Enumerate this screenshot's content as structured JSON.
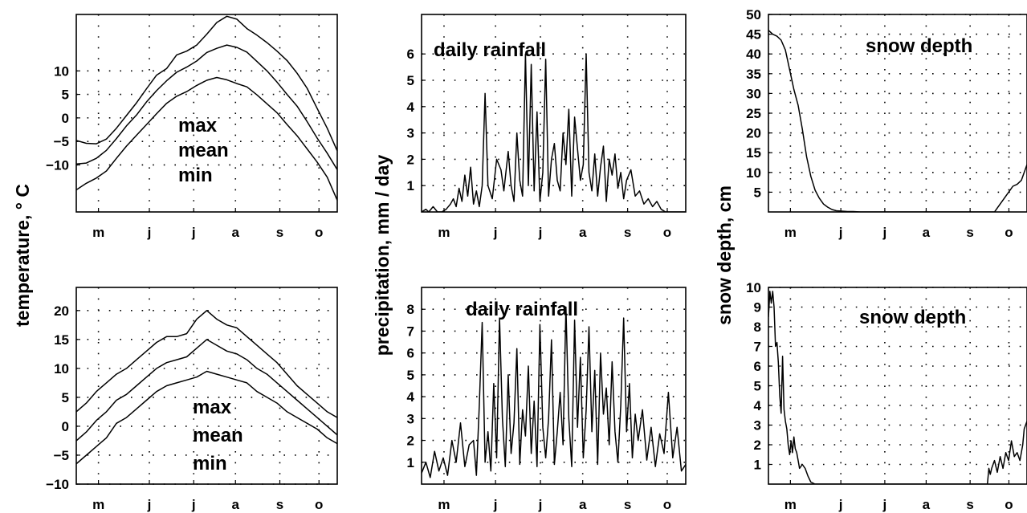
{
  "figure": {
    "ylabels": {
      "temperature": "temperature,   ° C",
      "precipitation": "precipitation, mm / day",
      "snow": "snow depth, cm"
    }
  },
  "chart_data": [
    {
      "id": "temp-top",
      "type": "line",
      "grid": true,
      "xticks": [
        "m",
        "j",
        "j",
        "a",
        "s",
        "o"
      ],
      "xlim": [
        0,
        183
      ],
      "ylim": [
        -20,
        22
      ],
      "yticks": [
        10,
        5,
        0,
        -5,
        -10
      ],
      "ytick_labels": [
        "10",
        "5",
        "0",
        "−5",
        "−10"
      ],
      "annotations": [
        "max",
        "mean",
        "min"
      ],
      "series": [
        {
          "values": [
            -4.8,
            -5.4,
            -5.5,
            -4.5,
            -2.2,
            0.5,
            3.2,
            6.2,
            9.1,
            10.5,
            13.4,
            14.2,
            15.5,
            17.8,
            20.3,
            21.6,
            21.0,
            19.0,
            17.6,
            16.0,
            14.2,
            12.2,
            9.5,
            6.3,
            2.0,
            -2.2,
            -7.0
          ]
        },
        {
          "values": [
            -9.8,
            -9.6,
            -8.6,
            -6.9,
            -4.4,
            -1.7,
            0.6,
            3.4,
            5.8,
            7.9,
            9.7,
            10.8,
            12.1,
            13.9,
            14.8,
            15.5,
            15.0,
            14.0,
            12.0,
            10.0,
            7.6,
            5.0,
            2.5,
            -0.8,
            -4.3,
            -7.5,
            -11.0
          ]
        },
        {
          "values": [
            -15.3,
            -13.9,
            -12.8,
            -11.3,
            -8.6,
            -6.0,
            -3.7,
            -1.4,
            0.9,
            3.1,
            4.6,
            5.6,
            6.9,
            8.0,
            8.6,
            8.1,
            7.3,
            6.6,
            4.9,
            3.0,
            1.1,
            -1.4,
            -3.8,
            -6.6,
            -9.4,
            -12.6,
            -17.5
          ]
        }
      ]
    },
    {
      "id": "rain-top",
      "type": "line",
      "grid": true,
      "title": "daily rainfall",
      "xticks": [
        "m",
        "j",
        "j",
        "a",
        "s",
        "o"
      ],
      "xlim": [
        0,
        183
      ],
      "ylim": [
        0,
        7.5
      ],
      "yticks": [
        1,
        2,
        3,
        4,
        5,
        6
      ],
      "x": [
        0,
        3,
        5,
        8,
        11,
        14,
        17,
        20,
        22,
        24,
        26,
        28,
        30,
        32,
        34,
        36,
        38,
        40,
        42,
        44,
        46,
        49,
        52,
        55,
        57,
        60,
        62,
        64,
        66,
        68,
        70,
        72,
        74,
        76,
        78,
        80,
        82,
        84,
        86,
        88,
        90,
        92,
        94,
        96,
        98,
        100,
        102,
        104,
        106,
        108,
        110,
        112,
        114,
        116,
        118,
        120,
        122,
        124,
        126,
        128,
        130,
        132,
        134,
        136,
        138,
        140,
        142,
        145,
        148,
        151,
        154,
        157,
        160,
        163,
        166,
        169,
        172,
        175,
        178,
        183
      ],
      "values": [
        0,
        0.1,
        0,
        0.2,
        0,
        0,
        0.1,
        0.3,
        0.5,
        0.2,
        0.9,
        0.4,
        1.4,
        0.6,
        1.7,
        0.3,
        0.8,
        0.2,
        1.0,
        4.5,
        1.0,
        0.5,
        2.0,
        1.6,
        0.8,
        2.3,
        1.0,
        0.4,
        3.0,
        1.2,
        0.6,
        6.0,
        1.0,
        5.6,
        0.8,
        3.8,
        0.4,
        1.5,
        5.8,
        0.6,
        2.0,
        2.6,
        1.2,
        0.8,
        3.0,
        1.8,
        3.9,
        0.6,
        3.6,
        2.4,
        1.2,
        1.8,
        6.0,
        1.5,
        0.8,
        2.2,
        0.6,
        1.7,
        2.5,
        0.4,
        2.0,
        1.4,
        2.2,
        0.9,
        1.5,
        0.5,
        1.2,
        1.6,
        0.6,
        0.8,
        0.3,
        0.5,
        0.2,
        0.4,
        0.1,
        0,
        0,
        0,
        0,
        0
      ]
    },
    {
      "id": "snow-top",
      "type": "line",
      "grid": true,
      "title": "snow depth",
      "xticks": [
        "m",
        "j",
        "j",
        "a",
        "s",
        "o"
      ],
      "xlim": [
        0,
        183
      ],
      "ylim": [
        0,
        50
      ],
      "yticks": [
        5,
        10,
        15,
        20,
        25,
        30,
        35,
        40,
        45,
        50
      ],
      "x": [
        0,
        3,
        6,
        9,
        12,
        15,
        18,
        21,
        24,
        27,
        30,
        33,
        36,
        39,
        42,
        45,
        48,
        52,
        56,
        60,
        65,
        70,
        80,
        100,
        130,
        160,
        170,
        173,
        176,
        179,
        183
      ],
      "values": [
        46,
        45,
        44.5,
        43.5,
        41,
        36,
        31,
        27,
        21,
        14,
        9,
        5.5,
        3.5,
        2,
        1.2,
        0.6,
        0.3,
        0.2,
        0.1,
        0.1,
        0,
        0,
        0,
        0,
        0,
        0,
        5,
        6.5,
        7,
        8,
        12
      ]
    },
    {
      "id": "temp-bottom",
      "type": "line",
      "grid": true,
      "xticks": [
        "m",
        "j",
        "j",
        "a",
        "s",
        "o"
      ],
      "xlim": [
        0,
        183
      ],
      "ylim": [
        -10,
        24
      ],
      "yticks": [
        20,
        15,
        10,
        5,
        0,
        -5,
        -10
      ],
      "ytick_labels": [
        "20",
        "15",
        "10",
        "5",
        "0",
        "−5",
        "−10"
      ],
      "annotations": [
        "max",
        "mean",
        "min"
      ],
      "series": [
        {
          "values": [
            2.5,
            4.0,
            6.0,
            7.5,
            9.0,
            10.0,
            11.5,
            13.0,
            14.5,
            15.5,
            15.5,
            16.0,
            18.5,
            20.0,
            18.5,
            17.5,
            17.0,
            15.5,
            14.0,
            12.5,
            11.0,
            9.0,
            7.0,
            5.5,
            4.0,
            2.5,
            1.5
          ]
        },
        {
          "values": [
            -2.5,
            -1.0,
            1.0,
            2.5,
            4.5,
            5.5,
            7.0,
            8.5,
            10.0,
            11.0,
            11.5,
            12.0,
            13.5,
            15.0,
            14.0,
            13.0,
            12.5,
            11.5,
            10.0,
            9.0,
            7.5,
            6.0,
            4.5,
            3.0,
            1.5,
            0.0,
            -1.5
          ]
        },
        {
          "values": [
            -6.5,
            -5.0,
            -3.5,
            -2.0,
            0.5,
            1.5,
            3.0,
            4.5,
            6.0,
            7.0,
            7.5,
            8.0,
            8.5,
            9.5,
            9.0,
            8.5,
            8.0,
            7.5,
            6.0,
            5.0,
            4.0,
            2.5,
            1.5,
            0.5,
            -0.5,
            -2.0,
            -3.0
          ]
        }
      ]
    },
    {
      "id": "rain-bottom",
      "type": "line",
      "grid": true,
      "title": "daily rainfall",
      "xticks": [
        "m",
        "j",
        "j",
        "a",
        "s",
        "o"
      ],
      "xlim": [
        0,
        183
      ],
      "ylim": [
        0,
        9
      ],
      "yticks": [
        1,
        2,
        3,
        4,
        5,
        6,
        7,
        8
      ],
      "x": [
        0,
        3,
        6,
        9,
        12,
        15,
        18,
        21,
        24,
        27,
        30,
        33,
        36,
        38,
        40,
        42,
        44,
        46,
        48,
        50,
        52,
        54,
        56,
        58,
        60,
        62,
        64,
        66,
        68,
        70,
        72,
        74,
        76,
        78,
        80,
        82,
        84,
        86,
        88,
        90,
        92,
        94,
        96,
        98,
        100,
        102,
        104,
        106,
        108,
        110,
        112,
        114,
        116,
        118,
        120,
        122,
        124,
        126,
        128,
        130,
        132,
        134,
        136,
        138,
        140,
        142,
        144,
        146,
        148,
        150,
        153,
        156,
        159,
        162,
        165,
        168,
        171,
        174,
        177,
        180,
        183
      ],
      "values": [
        0.5,
        1.0,
        0.3,
        1.5,
        0.6,
        1.2,
        0.4,
        2.0,
        1.0,
        2.8,
        0.8,
        1.8,
        2.0,
        0.4,
        3.6,
        7.4,
        1.0,
        2.4,
        0.6,
        4.6,
        1.2,
        7.6,
        3.0,
        0.8,
        5.0,
        1.4,
        2.8,
        6.2,
        0.9,
        3.4,
        2.2,
        5.4,
        1.4,
        3.8,
        0.8,
        7.3,
        2.6,
        1.2,
        3.0,
        6.6,
        0.9,
        2.4,
        4.2,
        1.8,
        8.1,
        3.0,
        0.8,
        7.5,
        2.6,
        5.8,
        1.2,
        3.4,
        7.2,
        2.4,
        5.2,
        0.9,
        6.0,
        3.2,
        4.4,
        1.8,
        5.6,
        2.4,
        1.0,
        3.6,
        7.6,
        2.4,
        4.6,
        1.2,
        3.2,
        2.0,
        3.4,
        1.1,
        2.6,
        0.8,
        2.3,
        1.4,
        4.2,
        1.2,
        2.6,
        0.6,
        0.9
      ]
    },
    {
      "id": "snow-bottom",
      "type": "line",
      "grid": true,
      "title": "snow depth",
      "xticks": [
        "m",
        "j",
        "j",
        "a",
        "s",
        "o"
      ],
      "xlim": [
        0,
        183
      ],
      "ylim": [
        0,
        10
      ],
      "yticks": [
        1,
        2,
        3,
        4,
        5,
        6,
        7,
        8,
        9,
        10
      ],
      "x": [
        0,
        1,
        2,
        3,
        4,
        5,
        6,
        7,
        8,
        9,
        10,
        11,
        12,
        13,
        14,
        15,
        16,
        17,
        18,
        19,
        20,
        21,
        22,
        24,
        26,
        28,
        30,
        33,
        36,
        40,
        60,
        100,
        150,
        155,
        156,
        157,
        158,
        160,
        162,
        164,
        166,
        168,
        170,
        172,
        174,
        176,
        178,
        180,
        181,
        183
      ],
      "values": [
        8.5,
        9.8,
        9.2,
        9.8,
        9.0,
        7.0,
        7.2,
        6.2,
        4.5,
        3.6,
        6.5,
        3.8,
        3.2,
        2.8,
        2.0,
        1.5,
        2.2,
        1.6,
        2.4,
        1.8,
        1.6,
        1.2,
        0.8,
        1.0,
        0.8,
        0.4,
        0.1,
        0,
        0,
        0,
        0,
        0,
        0,
        0,
        0.8,
        0.5,
        0.8,
        1.2,
        0.6,
        1.4,
        0.8,
        1.6,
        1.2,
        2.2,
        1.4,
        1.6,
        1.2,
        2.0,
        2.8,
        3.2
      ]
    }
  ]
}
